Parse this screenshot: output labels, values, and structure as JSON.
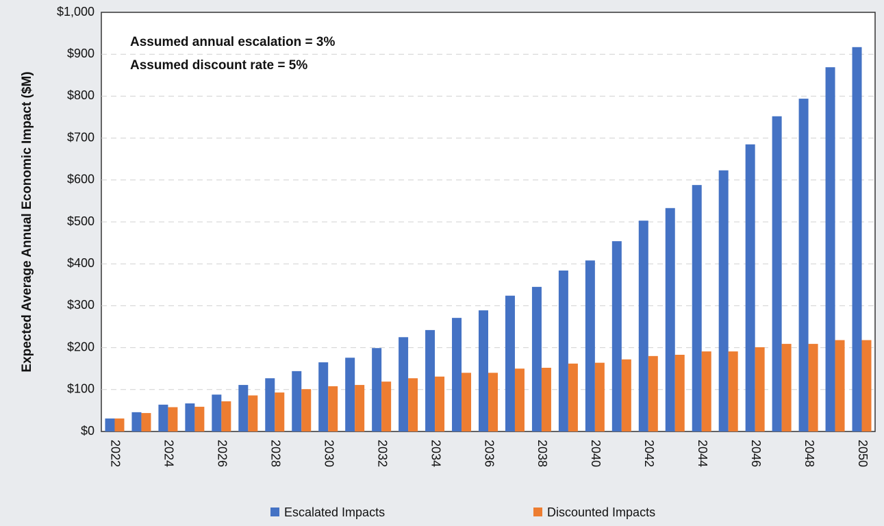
{
  "chart_data": {
    "type": "bar",
    "y_label": "Expected Average Annual Economic Impact ($M)",
    "annotations": [
      "Assumed  annual escalation = 3%",
      "Assumed discount rate = 5%"
    ],
    "categories": [
      "2022",
      null,
      "2024",
      null,
      "2026",
      null,
      "2028",
      null,
      "2030",
      null,
      "2032",
      null,
      "2034",
      null,
      "2036",
      null,
      "2038",
      null,
      "2040",
      null,
      "2042",
      null,
      "2044",
      null,
      "2046",
      null,
      "2048",
      null,
      "2050"
    ],
    "series": [
      {
        "name": "Escalated Impacts",
        "color": "#4472c4",
        "values": [
          31,
          46,
          64,
          67,
          88,
          111,
          127,
          144,
          165,
          176,
          199,
          225,
          242,
          271,
          289,
          324,
          345,
          384,
          408,
          454,
          503,
          533,
          588,
          623,
          685,
          752,
          794,
          869,
          917
        ]
      },
      {
        "name": "Discounted Impacts",
        "color": "#ed7d31",
        "values": [
          31,
          44,
          58,
          59,
          72,
          86,
          93,
          101,
          108,
          111,
          119,
          127,
          131,
          140,
          140,
          150,
          152,
          162,
          164,
          172,
          180,
          183,
          191,
          191,
          201,
          209,
          209,
          218,
          218
        ]
      }
    ],
    "ylim": [
      0,
      1000
    ],
    "yticks": [
      {
        "value": 0,
        "label": "$0"
      },
      {
        "value": 100,
        "label": "$100"
      },
      {
        "value": 200,
        "label": "$200"
      },
      {
        "value": 300,
        "label": "$300"
      },
      {
        "value": 400,
        "label": "$400"
      },
      {
        "value": 500,
        "label": "$500"
      },
      {
        "value": 600,
        "label": "$600"
      },
      {
        "value": 700,
        "label": "$700"
      },
      {
        "value": 800,
        "label": "$800"
      },
      {
        "value": 900,
        "label": "$900"
      },
      {
        "value": 1000,
        "label": "$1,000"
      }
    ],
    "grid": true,
    "legend": "bottom"
  }
}
